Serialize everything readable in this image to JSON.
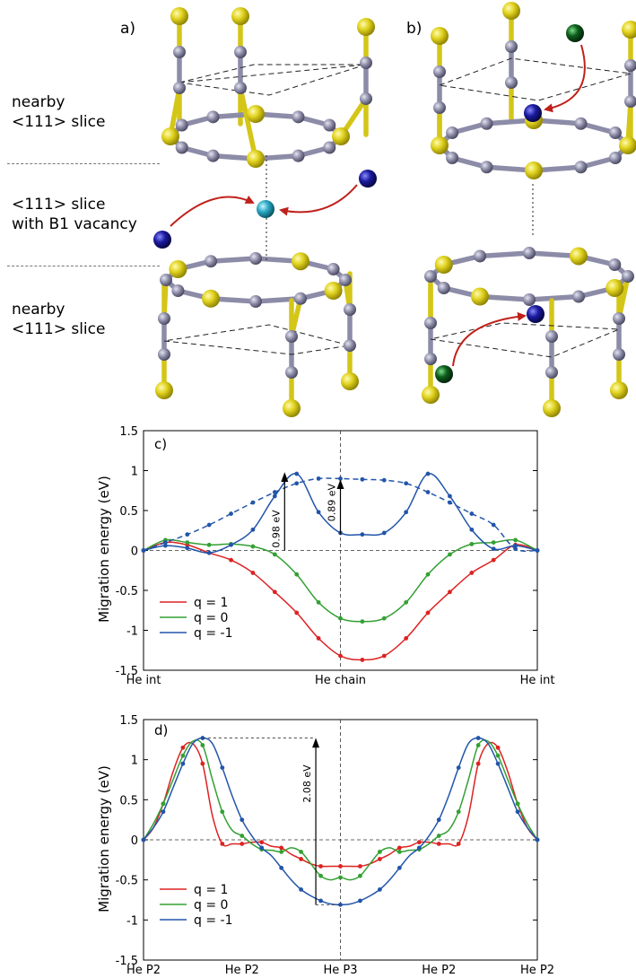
{
  "top": {
    "panel_a_tag": "a)",
    "panel_b_tag": "b)",
    "row_labels": [
      "nearby\n<111> slice",
      "<111> slice\nwith B1 vacancy",
      "nearby\n<111> slice"
    ]
  },
  "colors": {
    "q1": "#dd2222",
    "q0": "#33a033",
    "qm1": "#2255aa",
    "boron": "#d4c617",
    "carbon": "#8c8ca8",
    "he_blue": "#1a1a9e",
    "he_cyan": "#2aa8c4",
    "he_green": "#0d5c1a",
    "arrow": "#c0201a"
  },
  "chart_data": [
    {
      "id": "c",
      "type": "line",
      "panel_tag": "c)",
      "ylabel": "Migration energy (eV)",
      "ylim": [
        -1.5,
        1.5
      ],
      "yticks": [
        "1.5",
        "1",
        "0.5",
        "0",
        "-0.5",
        "-1",
        "-1.5"
      ],
      "xticklabels": [
        "He int",
        "He chain",
        "He int"
      ],
      "x": [
        0,
        1,
        2,
        3,
        4,
        5,
        6,
        7,
        8,
        9,
        10,
        11,
        12,
        13,
        14,
        15,
        16,
        17,
        18
      ],
      "series": [
        {
          "name": "q =  1",
          "values": [
            0,
            0.1,
            0.07,
            -0.03,
            -0.12,
            -0.28,
            -0.52,
            -0.78,
            -1.1,
            -1.32,
            -1.37,
            -1.32,
            -1.1,
            -0.78,
            -0.52,
            -0.28,
            -0.12,
            0.07,
            0
          ]
        },
        {
          "name": "q =  0",
          "values": [
            0,
            0.13,
            0.1,
            0.07,
            0.08,
            0.05,
            -0.05,
            -0.3,
            -0.65,
            -0.85,
            -0.89,
            -0.85,
            -0.65,
            -0.3,
            -0.05,
            0.08,
            0.1,
            0.13,
            0
          ]
        },
        {
          "name": "q = -1",
          "values": [
            0,
            0.06,
            0.03,
            -0.03,
            0.07,
            0.26,
            0.68,
            0.96,
            0.48,
            0.22,
            0.2,
            0.22,
            0.48,
            0.96,
            0.68,
            0.26,
            0.02,
            0.06,
            0
          ]
        },
        {
          "name": "",
          "dashed": true,
          "values": [
            0,
            0.1,
            0.2,
            0.32,
            0.46,
            0.6,
            0.73,
            0.84,
            0.9,
            0.9,
            0.89,
            0.88,
            0.84,
            0.73,
            0.6,
            0.46,
            0.32,
            0.02,
            0
          ]
        }
      ],
      "annotations": [
        "0.98 eV",
        "0.89 eV"
      ]
    },
    {
      "id": "d",
      "type": "line",
      "panel_tag": "d)",
      "ylabel": "Migration energy (eV)",
      "ylim": [
        -1.5,
        1.5
      ],
      "yticks": [
        "1.5",
        "1",
        "0.5",
        "0",
        "-0.5",
        "-1",
        "-1.5"
      ],
      "xticklabels": [
        "He P2",
        "He P2",
        "He P3",
        "He P2",
        "He P2"
      ],
      "x": [
        0,
        1,
        2,
        3,
        4,
        5,
        6,
        7,
        8,
        9,
        10,
        11,
        12,
        13,
        14,
        15,
        16,
        17,
        18,
        19,
        20,
        21,
        22,
        23,
        24,
        25,
        26,
        27,
        28,
        29,
        30,
        31,
        32,
        33,
        34,
        35,
        36,
        37,
        38,
        39,
        40
      ],
      "series": [
        {
          "name": "q =  1",
          "values": [
            0,
            0.15,
            0.45,
            0.85,
            1.15,
            1.2,
            0.95,
            0.3,
            -0.05,
            -0.05,
            -0.05,
            -0.03,
            -0.03,
            -0.08,
            -0.1,
            -0.18,
            -0.24,
            -0.3,
            -0.33,
            -0.33,
            -0.33,
            -0.33,
            -0.33,
            -0.3,
            -0.24,
            -0.18,
            -0.1,
            -0.08,
            -0.03,
            -0.03,
            -0.05,
            -0.05,
            -0.05,
            0.3,
            0.95,
            1.2,
            1.15,
            0.85,
            0.45,
            0.15,
            0
          ]
        },
        {
          "name": "q =  0",
          "values": [
            0,
            0.2,
            0.45,
            0.75,
            1.05,
            1.23,
            1.18,
            0.75,
            0.35,
            0.12,
            0.05,
            -0.05,
            -0.12,
            -0.13,
            -0.15,
            -0.1,
            -0.15,
            -0.3,
            -0.45,
            -0.5,
            -0.47,
            -0.5,
            -0.45,
            -0.3,
            -0.15,
            -0.1,
            -0.15,
            -0.13,
            -0.12,
            -0.05,
            0.05,
            0.12,
            0.35,
            0.75,
            1.18,
            1.23,
            1.05,
            0.75,
            0.45,
            0.2,
            0
          ]
        },
        {
          "name": "q = -1",
          "values": [
            0,
            0.15,
            0.35,
            0.65,
            0.95,
            1.2,
            1.27,
            1.2,
            0.9,
            0.55,
            0.25,
            0.05,
            -0.1,
            -0.2,
            -0.35,
            -0.5,
            -0.62,
            -0.7,
            -0.76,
            -0.8,
            -0.81,
            -0.8,
            -0.76,
            -0.7,
            -0.62,
            -0.5,
            -0.35,
            -0.2,
            -0.1,
            0.05,
            0.25,
            0.55,
            0.9,
            1.2,
            1.27,
            1.2,
            0.95,
            0.65,
            0.35,
            0.15,
            0
          ]
        }
      ],
      "annotations": [
        "2.08 eV"
      ]
    }
  ]
}
